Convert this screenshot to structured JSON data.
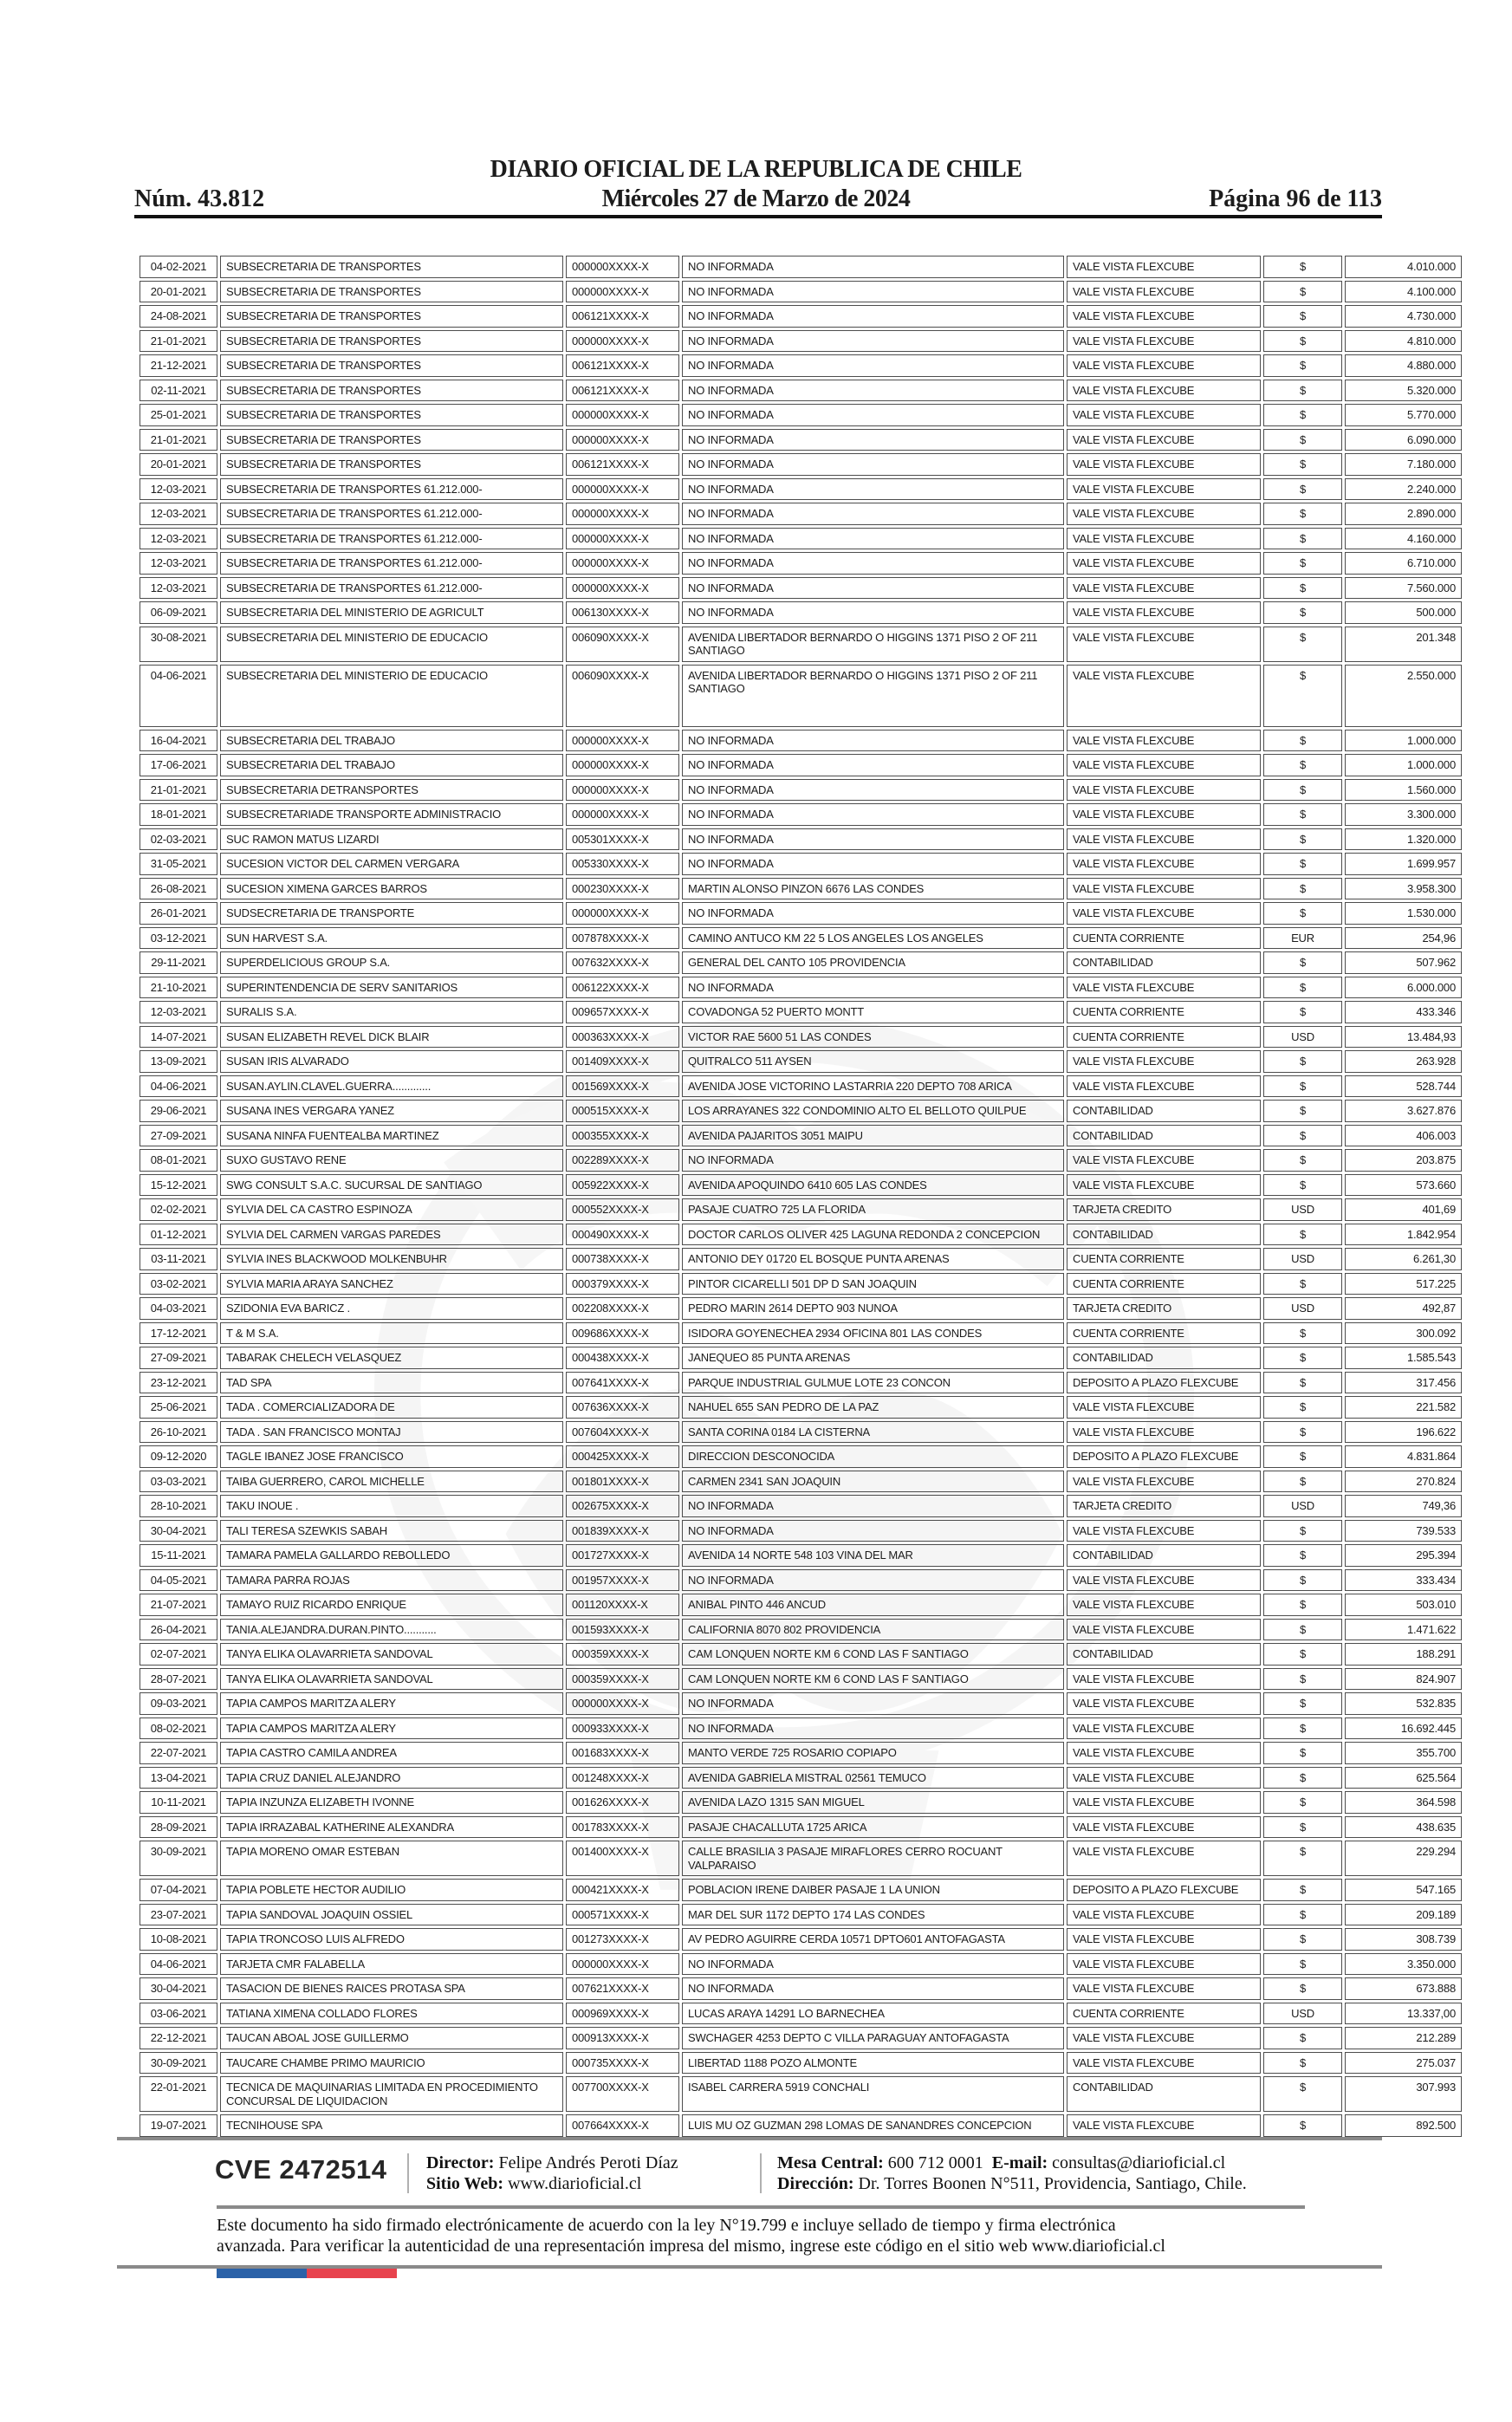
{
  "header": {
    "title": "DIARIO OFICIAL DE LA REPUBLICA DE CHILE",
    "date": "Miércoles 27 de Marzo de 2024",
    "issue": "Núm. 43.812",
    "page": "Página 96 de 113"
  },
  "table": {
    "tall_rows": [
      16
    ],
    "rows": [
      [
        "04-02-2021",
        "SUBSECRETARIA DE TRANSPORTES",
        "000000XXXX-X",
        "NO INFORMADA",
        "VALE VISTA FLEXCUBE",
        "$",
        "4.010.000"
      ],
      [
        "20-01-2021",
        "SUBSECRETARIA DE TRANSPORTES",
        "000000XXXX-X",
        "NO INFORMADA",
        "VALE VISTA FLEXCUBE",
        "$",
        "4.100.000"
      ],
      [
        "24-08-2021",
        "SUBSECRETARIA DE TRANSPORTES",
        "006121XXXX-X",
        "NO INFORMADA",
        "VALE VISTA FLEXCUBE",
        "$",
        "4.730.000"
      ],
      [
        "21-01-2021",
        "SUBSECRETARIA DE TRANSPORTES",
        "000000XXXX-X",
        "NO INFORMADA",
        "VALE VISTA FLEXCUBE",
        "$",
        "4.810.000"
      ],
      [
        "21-12-2021",
        "SUBSECRETARIA DE TRANSPORTES",
        "006121XXXX-X",
        "NO INFORMADA",
        "VALE VISTA FLEXCUBE",
        "$",
        "4.880.000"
      ],
      [
        "02-11-2021",
        "SUBSECRETARIA DE TRANSPORTES",
        "006121XXXX-X",
        "NO INFORMADA",
        "VALE VISTA FLEXCUBE",
        "$",
        "5.320.000"
      ],
      [
        "25-01-2021",
        "SUBSECRETARIA DE TRANSPORTES",
        "000000XXXX-X",
        "NO INFORMADA",
        "VALE VISTA FLEXCUBE",
        "$",
        "5.770.000"
      ],
      [
        "21-01-2021",
        "SUBSECRETARIA DE TRANSPORTES",
        "000000XXXX-X",
        "NO INFORMADA",
        "VALE VISTA FLEXCUBE",
        "$",
        "6.090.000"
      ],
      [
        "20-01-2021",
        "SUBSECRETARIA DE TRANSPORTES",
        "006121XXXX-X",
        "NO INFORMADA",
        "VALE VISTA FLEXCUBE",
        "$",
        "7.180.000"
      ],
      [
        "12-03-2021",
        "SUBSECRETARIA DE TRANSPORTES 61.212.000-",
        "000000XXXX-X",
        "NO INFORMADA",
        "VALE VISTA FLEXCUBE",
        "$",
        "2.240.000"
      ],
      [
        "12-03-2021",
        "SUBSECRETARIA DE TRANSPORTES 61.212.000-",
        "000000XXXX-X",
        "NO INFORMADA",
        "VALE VISTA FLEXCUBE",
        "$",
        "2.890.000"
      ],
      [
        "12-03-2021",
        "SUBSECRETARIA DE TRANSPORTES 61.212.000-",
        "000000XXXX-X",
        "NO INFORMADA",
        "VALE VISTA FLEXCUBE",
        "$",
        "4.160.000"
      ],
      [
        "12-03-2021",
        "SUBSECRETARIA DE TRANSPORTES 61.212.000-",
        "000000XXXX-X",
        "NO INFORMADA",
        "VALE VISTA FLEXCUBE",
        "$",
        "6.710.000"
      ],
      [
        "12-03-2021",
        "SUBSECRETARIA DE TRANSPORTES 61.212.000-",
        "000000XXXX-X",
        "NO INFORMADA",
        "VALE VISTA FLEXCUBE",
        "$",
        "7.560.000"
      ],
      [
        "06-09-2021",
        "SUBSECRETARIA DEL MINISTERIO DE AGRICULT",
        "006130XXXX-X",
        "NO INFORMADA",
        "VALE VISTA FLEXCUBE",
        "$",
        "500.000"
      ],
      [
        "30-08-2021",
        "SUBSECRETARIA DEL MINISTERIO DE EDUCACIO",
        "006090XXXX-X",
        "AVENIDA LIBERTADOR BERNARDO O HIGGINS 1371 PISO 2 OF 211 SANTIAGO",
        "VALE VISTA FLEXCUBE",
        "$",
        "201.348"
      ],
      [
        "04-06-2021",
        "SUBSECRETARIA DEL MINISTERIO DE EDUCACIO",
        "006090XXXX-X",
        "AVENIDA LIBERTADOR BERNARDO O HIGGINS 1371 PISO 2 OF 211 SANTIAGO",
        "VALE VISTA FLEXCUBE",
        "$",
        "2.550.000"
      ],
      [
        "16-04-2021",
        "SUBSECRETARIA DEL TRABAJO",
        "000000XXXX-X",
        "NO INFORMADA",
        "VALE VISTA FLEXCUBE",
        "$",
        "1.000.000"
      ],
      [
        "17-06-2021",
        "SUBSECRETARIA DEL TRABAJO",
        "000000XXXX-X",
        "NO INFORMADA",
        "VALE VISTA FLEXCUBE",
        "$",
        "1.000.000"
      ],
      [
        "21-01-2021",
        "SUBSECRETARIA DETRANSPORTES",
        "000000XXXX-X",
        "NO INFORMADA",
        "VALE VISTA FLEXCUBE",
        "$",
        "1.560.000"
      ],
      [
        "18-01-2021",
        "SUBSECRETARIADE TRANSPORTE ADMINISTRACIO",
        "000000XXXX-X",
        "NO INFORMADA",
        "VALE VISTA FLEXCUBE",
        "$",
        "3.300.000"
      ],
      [
        "02-03-2021",
        "SUC RAMON MATUS LIZARDI",
        "005301XXXX-X",
        "NO INFORMADA",
        "VALE VISTA FLEXCUBE",
        "$",
        "1.320.000"
      ],
      [
        "31-05-2021",
        "SUCESION VICTOR DEL CARMEN VERGARA",
        "005330XXXX-X",
        "NO INFORMADA",
        "VALE VISTA FLEXCUBE",
        "$",
        "1.699.957"
      ],
      [
        "26-08-2021",
        "SUCESION XIMENA GARCES BARROS",
        "000230XXXX-X",
        "MARTIN ALONSO PINZON 6676 LAS CONDES",
        "VALE VISTA FLEXCUBE",
        "$",
        "3.958.300"
      ],
      [
        "26-01-2021",
        "SUDSECRETARIA DE TRANSPORTE",
        "000000XXXX-X",
        "NO INFORMADA",
        "VALE VISTA FLEXCUBE",
        "$",
        "1.530.000"
      ],
      [
        "03-12-2021",
        "SUN HARVEST S.A.",
        "007878XXXX-X",
        "CAMINO ANTUCO KM 22 5 LOS ANGELES LOS ANGELES",
        "CUENTA CORRIENTE",
        "EUR",
        "254,96"
      ],
      [
        "29-11-2021",
        "SUPERDELICIOUS GROUP S.A.",
        "007632XXXX-X",
        "GENERAL DEL CANTO 105 PROVIDENCIA",
        "CONTABILIDAD",
        "$",
        "507.962"
      ],
      [
        "21-10-2021",
        "SUPERINTENDENCIA DE SERV SANITARIOS",
        "006122XXXX-X",
        "NO INFORMADA",
        "VALE VISTA FLEXCUBE",
        "$",
        "6.000.000"
      ],
      [
        "12-03-2021",
        "SURALIS S.A.",
        "009657XXXX-X",
        "COVADONGA 52 PUERTO MONTT",
        "CUENTA CORRIENTE",
        "$",
        "433.346"
      ],
      [
        "14-07-2021",
        "SUSAN ELIZABETH REVEL DICK BLAIR",
        "000363XXXX-X",
        "VICTOR RAE 5600 51 LAS CONDES",
        "CUENTA CORRIENTE",
        "USD",
        "13.484,93"
      ],
      [
        "13-09-2021",
        "SUSAN IRIS ALVARADO",
        "001409XXXX-X",
        "QUITRALCO 511 AYSEN",
        "VALE VISTA FLEXCUBE",
        "$",
        "263.928"
      ],
      [
        "04-06-2021",
        "SUSAN.AYLIN.CLAVEL.GUERRA.............",
        "001569XXXX-X",
        "AVENIDA JOSE VICTORINO LASTARRIA 220 DEPTO 708 ARICA",
        "VALE VISTA FLEXCUBE",
        "$",
        "528.744"
      ],
      [
        "29-06-2021",
        "SUSANA INES VERGARA YANEZ",
        "000515XXXX-X",
        "LOS ARRAYANES 322 CONDOMINIO ALTO EL BELLOTO QUILPUE",
        "CONTABILIDAD",
        "$",
        "3.627.876"
      ],
      [
        "27-09-2021",
        "SUSANA NINFA FUENTEALBA MARTINEZ",
        "000355XXXX-X",
        "AVENIDA PAJARITOS 3051 MAIPU",
        "CONTABILIDAD",
        "$",
        "406.003"
      ],
      [
        "08-01-2021",
        "SUXO GUSTAVO RENE",
        "002289XXXX-X",
        "NO INFORMADA",
        "VALE VISTA FLEXCUBE",
        "$",
        "203.875"
      ],
      [
        "15-12-2021",
        "SWG CONSULT S.A.C. SUCURSAL DE SANTIAGO",
        "005922XXXX-X",
        "AVENIDA APOQUINDO 6410 605 LAS CONDES",
        "VALE VISTA FLEXCUBE",
        "$",
        "573.660"
      ],
      [
        "02-02-2021",
        "SYLVIA DEL CA CASTRO ESPINOZA",
        "000552XXXX-X",
        "PASAJE CUATRO 725 LA FLORIDA",
        "TARJETA CREDITO",
        "USD",
        "401,69"
      ],
      [
        "01-12-2021",
        "SYLVIA DEL CARMEN VARGAS PAREDES",
        "000490XXXX-X",
        "DOCTOR CARLOS OLIVER 425 LAGUNA REDONDA 2 CONCEPCION",
        "CONTABILIDAD",
        "$",
        "1.842.954"
      ],
      [
        "03-11-2021",
        "SYLVIA INES BLACKWOOD MOLKENBUHR",
        "000738XXXX-X",
        "ANTONIO DEY 01720 EL BOSQUE PUNTA ARENAS",
        "CUENTA CORRIENTE",
        "USD",
        "6.261,30"
      ],
      [
        "03-02-2021",
        "SYLVIA MARIA ARAYA SANCHEZ",
        "000379XXXX-X",
        "PINTOR CICARELLI 501 DP D SAN JOAQUIN",
        "CUENTA CORRIENTE",
        "$",
        "517.225"
      ],
      [
        "04-03-2021",
        "SZIDONIA EVA BARICZ .",
        "002208XXXX-X",
        "PEDRO MARIN 2614 DEPTO 903 NUNOA",
        "TARJETA CREDITO",
        "USD",
        "492,87"
      ],
      [
        "17-12-2021",
        "T & M S.A.",
        "009686XXXX-X",
        "ISIDORA GOYENECHEA 2934 OFICINA 801 LAS CONDES",
        "CUENTA CORRIENTE",
        "$",
        "300.092"
      ],
      [
        "27-09-2021",
        "TABARAK CHELECH VELASQUEZ",
        "000438XXXX-X",
        "JANEQUEO 85 PUNTA ARENAS",
        "CONTABILIDAD",
        "$",
        "1.585.543"
      ],
      [
        "23-12-2021",
        "TAD SPA",
        "007641XXXX-X",
        "PARQUE INDUSTRIAL GULMUE LOTE 23 CONCON",
        "DEPOSITO A PLAZO FLEXCUBE",
        "$",
        "317.456"
      ],
      [
        "25-06-2021",
        "TADA . COMERCIALIZADORA DE",
        "007636XXXX-X",
        "NAHUEL 655 SAN PEDRO DE LA PAZ",
        "VALE VISTA FLEXCUBE",
        "$",
        "221.582"
      ],
      [
        "26-10-2021",
        "TADA . SAN FRANCISCO MONTAJ",
        "007604XXXX-X",
        "SANTA CORINA 0184 LA CISTERNA",
        "VALE VISTA FLEXCUBE",
        "$",
        "196.622"
      ],
      [
        "09-12-2020",
        "TAGLE IBANEZ JOSE FRANCISCO",
        "000425XXXX-X",
        "DIRECCION DESCONOCIDA",
        "DEPOSITO A PLAZO FLEXCUBE",
        "$",
        "4.831.864"
      ],
      [
        "03-03-2021",
        "TAIBA GUERRERO, CAROL MICHELLE",
        "001801XXXX-X",
        "CARMEN 2341 SAN JOAQUIN",
        "VALE VISTA FLEXCUBE",
        "$",
        "270.824"
      ],
      [
        "28-10-2021",
        "TAKU INOUE .",
        "002675XXXX-X",
        "NO INFORMADA",
        "TARJETA CREDITO",
        "USD",
        "749,36"
      ],
      [
        "30-04-2021",
        "TALI TERESA SZEWKIS SABAH",
        "001839XXXX-X",
        "NO INFORMADA",
        "VALE VISTA FLEXCUBE",
        "$",
        "739.533"
      ],
      [
        "15-11-2021",
        "TAMARA PAMELA GALLARDO REBOLLEDO",
        "001727XXXX-X",
        "AVENIDA 14 NORTE 548 103 VINA DEL MAR",
        "CONTABILIDAD",
        "$",
        "295.394"
      ],
      [
        "04-05-2021",
        "TAMARA PARRA ROJAS",
        "001957XXXX-X",
        "NO INFORMADA",
        "VALE VISTA FLEXCUBE",
        "$",
        "333.434"
      ],
      [
        "21-07-2021",
        "TAMAYO RUIZ RICARDO ENRIQUE",
        "001120XXXX-X",
        "ANIBAL PINTO 446 ANCUD",
        "VALE VISTA FLEXCUBE",
        "$",
        "503.010"
      ],
      [
        "26-04-2021",
        "TANIA.ALEJANDRA.DURAN.PINTO...........",
        "001593XXXX-X",
        "CALIFORNIA 8070 802 PROVIDENCIA",
        "VALE VISTA FLEXCUBE",
        "$",
        "1.471.622"
      ],
      [
        "02-07-2021",
        "TANYA ELIKA OLAVARRIETA SANDOVAL",
        "000359XXXX-X",
        "CAM LONQUEN NORTE KM 6 COND LAS F SANTIAGO",
        "CONTABILIDAD",
        "$",
        "188.291"
      ],
      [
        "28-07-2021",
        "TANYA ELIKA OLAVARRIETA SANDOVAL",
        "000359XXXX-X",
        "CAM LONQUEN NORTE KM 6 COND LAS F SANTIAGO",
        "VALE VISTA FLEXCUBE",
        "$",
        "824.907"
      ],
      [
        "09-03-2021",
        "TAPIA CAMPOS MARITZA ALERY",
        "000000XXXX-X",
        "NO INFORMADA",
        "VALE VISTA FLEXCUBE",
        "$",
        "532.835"
      ],
      [
        "08-02-2021",
        "TAPIA CAMPOS MARITZA ALERY",
        "000933XXXX-X",
        "NO INFORMADA",
        "VALE VISTA FLEXCUBE",
        "$",
        "16.692.445"
      ],
      [
        "22-07-2021",
        "TAPIA CASTRO CAMILA ANDREA",
        "001683XXXX-X",
        "MANTO VERDE 725 ROSARIO COPIAPO",
        "VALE VISTA FLEXCUBE",
        "$",
        "355.700"
      ],
      [
        "13-04-2021",
        "TAPIA CRUZ DANIEL ALEJANDRO",
        "001248XXXX-X",
        "AVENIDA GABRIELA MISTRAL 02561 TEMUCO",
        "VALE VISTA FLEXCUBE",
        "$",
        "625.564"
      ],
      [
        "10-11-2021",
        "TAPIA INZUNZA ELIZABETH IVONNE",
        "001626XXXX-X",
        "AVENIDA LAZO 1315 SAN MIGUEL",
        "VALE VISTA FLEXCUBE",
        "$",
        "364.598"
      ],
      [
        "28-09-2021",
        "TAPIA IRRAZABAL KATHERINE ALEXANDRA",
        "001783XXXX-X",
        "PASAJE CHACALLUTA 1725 ARICA",
        "VALE VISTA FLEXCUBE",
        "$",
        "438.635"
      ],
      [
        "30-09-2021",
        "TAPIA MORENO OMAR ESTEBAN",
        "001400XXXX-X",
        "CALLE BRASILIA 3 PASAJE MIRAFLORES CERRO ROCUANT VALPARAISO",
        "VALE VISTA FLEXCUBE",
        "$",
        "229.294"
      ],
      [
        "07-04-2021",
        "TAPIA POBLETE HECTOR AUDILIO",
        "000421XXXX-X",
        "POBLACION IRENE DAIBER PASAJE 1 LA UNION",
        "DEPOSITO A PLAZO FLEXCUBE",
        "$",
        "547.165"
      ],
      [
        "23-07-2021",
        "TAPIA SANDOVAL JOAQUIN OSSIEL",
        "000571XXXX-X",
        "MAR DEL SUR 1172 DEPTO 174 LAS CONDES",
        "VALE VISTA FLEXCUBE",
        "$",
        "209.189"
      ],
      [
        "10-08-2021",
        "TAPIA TRONCOSO LUIS ALFREDO",
        "001273XXXX-X",
        "AV PEDRO AGUIRRE CERDA 10571 DPTO601 ANTOFAGASTA",
        "VALE VISTA FLEXCUBE",
        "$",
        "308.739"
      ],
      [
        "04-06-2021",
        "TARJETA CMR FALABELLA",
        "000000XXXX-X",
        "NO INFORMADA",
        "VALE VISTA FLEXCUBE",
        "$",
        "3.350.000"
      ],
      [
        "30-04-2021",
        "TASACION DE BIENES RAICES PROTASA SPA",
        "007621XXXX-X",
        "NO INFORMADA",
        "VALE VISTA FLEXCUBE",
        "$",
        "673.888"
      ],
      [
        "03-06-2021",
        "TATIANA XIMENA COLLADO FLORES",
        "000969XXXX-X",
        "LUCAS ARAYA 14291 LO BARNECHEA",
        "CUENTA CORRIENTE",
        "USD",
        "13.337,00"
      ],
      [
        "22-12-2021",
        "TAUCAN ABOAL JOSE GUILLERMO",
        "000913XXXX-X",
        "SWCHAGER 4253 DEPTO C VILLA PARAGUAY ANTOFAGASTA",
        "VALE VISTA FLEXCUBE",
        "$",
        "212.289"
      ],
      [
        "30-09-2021",
        "TAUCARE CHAMBE PRIMO MAURICIO",
        "000735XXXX-X",
        "LIBERTAD 1188 POZO ALMONTE",
        "VALE VISTA FLEXCUBE",
        "$",
        "275.037"
      ],
      [
        "22-01-2021",
        "TECNICA DE MAQUINARIAS LIMITADA EN PROCEDIMIENTO CONCURSAL DE LIQUIDACION",
        "007700XXXX-X",
        "ISABEL CARRERA 5919 CONCHALI",
        "CONTABILIDAD",
        "$",
        "307.993"
      ],
      [
        "19-07-2021",
        "TECNIHOUSE SPA",
        "007664XXXX-X",
        "LUIS MU OZ GUZMAN 298 LOMAS DE SANANDRES CONCEPCION",
        "VALE VISTA FLEXCUBE",
        "$",
        "892.500"
      ]
    ]
  },
  "footer": {
    "cve": "CVE 2472514",
    "director_label": "Director:",
    "director": "Felipe Andrés Peroti Díaz",
    "sitio_label": "Sitio Web:",
    "sitio": "www.diarioficial.cl",
    "mesa_label": "Mesa Central:",
    "mesa": "600 712 0001",
    "email_label": "E-mail:",
    "email": "consultas@diarioficial.cl",
    "direccion_label": "Dirección:",
    "direccion": "Dr. Torres Boonen N°511, Providencia, Santiago, Chile.",
    "disclaimer_line1": "Este documento ha sido firmado electrónicamente de acuerdo con la ley N°19.799 e incluye sellado de tiempo y firma electrónica",
    "disclaimer_line2": "avanzada. Para verificar la autenticidad de una representación impresa del mismo, ingrese este código en el sitio web www.diarioficial.cl",
    "flag_blue": "#2b62a8",
    "flag_red": "#e8434e"
  }
}
